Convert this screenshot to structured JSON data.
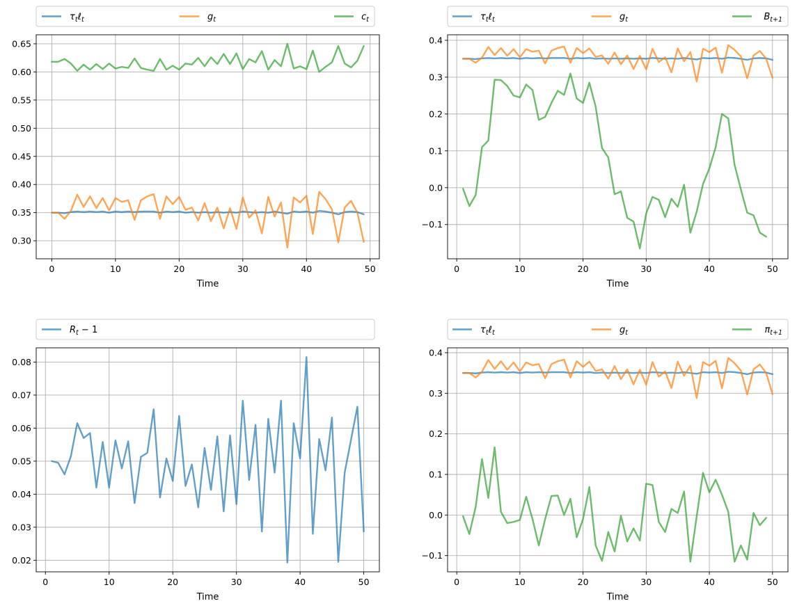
{
  "colors": {
    "blue": "#1f77b4",
    "orange": "#ff7f0e",
    "green": "#2ca02c"
  },
  "chart_data": [
    {
      "type": "line",
      "xlabel": "Time",
      "xlim": [
        -2.45,
        51.45
      ],
      "ylim": [
        0.268,
        0.666
      ],
      "xticks": [
        0,
        10,
        20,
        30,
        40,
        50
      ],
      "yticks": [
        0.3,
        0.35,
        0.4,
        0.45,
        0.5,
        0.55,
        0.6,
        0.65
      ],
      "ytick_labels": [
        "0.30",
        "0.35",
        "0.40",
        "0.45",
        "0.50",
        "0.55",
        "0.60",
        "0.65"
      ],
      "legend": "top",
      "series": [
        {
          "name": "τtℓt",
          "color": "blue",
          "x_start": 0,
          "values": [
            0.35,
            0.35,
            0.349,
            0.351,
            0.352,
            0.351,
            0.352,
            0.351,
            0.352,
            0.35,
            0.352,
            0.351,
            0.352,
            0.351,
            0.352,
            0.352,
            0.352,
            0.35,
            0.352,
            0.351,
            0.352,
            0.35,
            0.351,
            0.35,
            0.351,
            0.35,
            0.351,
            0.35,
            0.351,
            0.35,
            0.352,
            0.351,
            0.35,
            0.351,
            0.35,
            0.352,
            0.35,
            0.348,
            0.352,
            0.351,
            0.352,
            0.35,
            0.353,
            0.352,
            0.35,
            0.347,
            0.351,
            0.352,
            0.351,
            0.347
          ]
        },
        {
          "name": "gt",
          "color": "orange",
          "x_start": 0,
          "values": [
            0.35,
            0.35,
            0.339,
            0.353,
            0.382,
            0.36,
            0.379,
            0.358,
            0.376,
            0.354,
            0.376,
            0.369,
            0.372,
            0.337,
            0.372,
            0.379,
            0.383,
            0.339,
            0.379,
            0.365,
            0.378,
            0.355,
            0.359,
            0.336,
            0.367,
            0.335,
            0.359,
            0.322,
            0.358,
            0.321,
            0.377,
            0.341,
            0.354,
            0.313,
            0.378,
            0.343,
            0.368,
            0.288,
            0.377,
            0.368,
            0.38,
            0.312,
            0.387,
            0.374,
            0.356,
            0.297,
            0.359,
            0.371,
            0.35,
            0.298
          ]
        },
        {
          "name": "ct",
          "color": "green",
          "x_start": 0,
          "values": [
            0.618,
            0.618,
            0.623,
            0.615,
            0.602,
            0.613,
            0.604,
            0.614,
            0.605,
            0.615,
            0.606,
            0.609,
            0.607,
            0.624,
            0.607,
            0.604,
            0.602,
            0.623,
            0.604,
            0.611,
            0.604,
            0.615,
            0.613,
            0.625,
            0.61,
            0.626,
            0.614,
            0.632,
            0.614,
            0.633,
            0.605,
            0.623,
            0.617,
            0.637,
            0.604,
            0.621,
            0.61,
            0.65,
            0.606,
            0.61,
            0.605,
            0.638,
            0.6,
            0.609,
            0.617,
            0.646,
            0.615,
            0.608,
            0.62,
            0.646
          ]
        }
      ]
    },
    {
      "type": "line",
      "xlabel": "Time",
      "xlim": [
        -1.45,
        52.45
      ],
      "ylim": [
        -0.193,
        0.415
      ],
      "xticks": [
        0,
        10,
        20,
        30,
        40,
        50
      ],
      "yticks": [
        -0.1,
        0.0,
        0.1,
        0.2,
        0.3,
        0.4
      ],
      "ytick_labels": [
        "−0.1",
        "0.0",
        "0.1",
        "0.2",
        "0.3",
        "0.4"
      ],
      "legend": "top",
      "series": [
        {
          "name": "τtℓt",
          "color": "blue",
          "x_start": 1,
          "values": [
            0.35,
            0.35,
            0.349,
            0.351,
            0.352,
            0.351,
            0.352,
            0.351,
            0.352,
            0.35,
            0.352,
            0.351,
            0.352,
            0.351,
            0.352,
            0.352,
            0.352,
            0.35,
            0.352,
            0.351,
            0.352,
            0.35,
            0.351,
            0.35,
            0.351,
            0.35,
            0.351,
            0.35,
            0.351,
            0.35,
            0.352,
            0.351,
            0.35,
            0.351,
            0.35,
            0.352,
            0.35,
            0.348,
            0.352,
            0.351,
            0.352,
            0.35,
            0.353,
            0.352,
            0.35,
            0.347,
            0.351,
            0.352,
            0.351,
            0.347
          ]
        },
        {
          "name": "gt",
          "color": "orange",
          "x_start": 1,
          "values": [
            0.35,
            0.35,
            0.339,
            0.353,
            0.382,
            0.36,
            0.379,
            0.358,
            0.376,
            0.354,
            0.376,
            0.369,
            0.372,
            0.337,
            0.372,
            0.379,
            0.383,
            0.339,
            0.379,
            0.365,
            0.378,
            0.355,
            0.359,
            0.336,
            0.367,
            0.335,
            0.359,
            0.322,
            0.358,
            0.321,
            0.377,
            0.341,
            0.354,
            0.313,
            0.378,
            0.343,
            0.368,
            0.288,
            0.377,
            0.368,
            0.38,
            0.312,
            0.387,
            0.374,
            0.356,
            0.297,
            0.359,
            0.371,
            0.35,
            0.298
          ]
        },
        {
          "name": "Bt+1",
          "color": "green",
          "x_start": 1,
          "values": [
            -0.003,
            -0.05,
            -0.02,
            0.11,
            0.128,
            0.293,
            0.292,
            0.276,
            0.25,
            0.245,
            0.28,
            0.265,
            0.184,
            0.192,
            0.23,
            0.263,
            0.252,
            0.31,
            0.242,
            0.23,
            0.285,
            0.22,
            0.108,
            0.082,
            -0.018,
            -0.01,
            -0.082,
            -0.092,
            -0.165,
            -0.07,
            -0.025,
            -0.033,
            -0.08,
            -0.03,
            -0.052,
            0.008,
            -0.122,
            -0.065,
            0.01,
            0.052,
            0.11,
            0.2,
            0.188,
            0.062,
            -0.005,
            -0.068,
            -0.075,
            -0.122,
            -0.133
          ]
        }
      ]
    },
    {
      "type": "line",
      "xlabel": "Time",
      "xlim": [
        -1.45,
        52.45
      ],
      "ylim": [
        0.0165,
        0.0843
      ],
      "xticks": [
        0,
        10,
        20,
        30,
        40,
        50
      ],
      "yticks": [
        0.02,
        0.03,
        0.04,
        0.05,
        0.06,
        0.07,
        0.08
      ],
      "ytick_labels": [
        "0.02",
        "0.03",
        "0.04",
        "0.05",
        "0.06",
        "0.07",
        "0.08"
      ],
      "legend": "top",
      "series": [
        {
          "name": "Rt − 1",
          "color": "blue",
          "x_start": 1,
          "values": [
            0.05,
            0.0495,
            0.046,
            0.0515,
            0.0615,
            0.057,
            0.0585,
            0.042,
            0.0558,
            0.042,
            0.0563,
            0.0478,
            0.056,
            0.0373,
            0.0513,
            0.0525,
            0.0657,
            0.039,
            0.0508,
            0.044,
            0.0637,
            0.0425,
            0.049,
            0.036,
            0.054,
            0.0413,
            0.0575,
            0.0348,
            0.0578,
            0.037,
            0.0683,
            0.0443,
            0.061,
            0.0287,
            0.0628,
            0.0465,
            0.0683,
            0.0193,
            0.0615,
            0.0508,
            0.0815,
            0.028,
            0.0567,
            0.0472,
            0.0632,
            0.0195,
            0.0465,
            0.0565,
            0.0665,
            0.0287
          ]
        }
      ]
    },
    {
      "type": "line",
      "xlabel": "Time",
      "xlim": [
        -1.45,
        52.45
      ],
      "ylim": [
        -0.14,
        0.412
      ],
      "xticks": [
        0,
        10,
        20,
        30,
        40,
        50
      ],
      "yticks": [
        -0.1,
        0.0,
        0.1,
        0.2,
        0.3,
        0.4
      ],
      "ytick_labels": [
        "−0.1",
        "0.0",
        "0.1",
        "0.2",
        "0.3",
        "0.4"
      ],
      "legend": "top",
      "series": [
        {
          "name": "τtℓt",
          "color": "blue",
          "x_start": 1,
          "values": [
            0.35,
            0.35,
            0.349,
            0.351,
            0.352,
            0.351,
            0.352,
            0.351,
            0.352,
            0.35,
            0.352,
            0.351,
            0.352,
            0.351,
            0.352,
            0.352,
            0.352,
            0.35,
            0.352,
            0.351,
            0.352,
            0.35,
            0.351,
            0.35,
            0.351,
            0.35,
            0.351,
            0.35,
            0.351,
            0.35,
            0.352,
            0.351,
            0.35,
            0.351,
            0.35,
            0.352,
            0.35,
            0.348,
            0.352,
            0.351,
            0.352,
            0.35,
            0.353,
            0.352,
            0.35,
            0.347,
            0.351,
            0.352,
            0.351,
            0.347
          ]
        },
        {
          "name": "gt",
          "color": "orange",
          "x_start": 1,
          "values": [
            0.35,
            0.35,
            0.339,
            0.353,
            0.382,
            0.36,
            0.379,
            0.358,
            0.376,
            0.354,
            0.376,
            0.369,
            0.372,
            0.337,
            0.372,
            0.379,
            0.383,
            0.339,
            0.379,
            0.365,
            0.378,
            0.355,
            0.359,
            0.336,
            0.367,
            0.335,
            0.359,
            0.322,
            0.358,
            0.321,
            0.377,
            0.341,
            0.354,
            0.313,
            0.378,
            0.343,
            0.368,
            0.288,
            0.377,
            0.368,
            0.38,
            0.312,
            0.387,
            0.374,
            0.356,
            0.297,
            0.359,
            0.371,
            0.35,
            0.298
          ]
        },
        {
          "name": "πt+1",
          "color": "green",
          "x_start": 1,
          "values": [
            -0.003,
            -0.047,
            0.02,
            0.138,
            0.042,
            0.167,
            0.008,
            -0.02,
            -0.017,
            -0.012,
            0.045,
            -0.01,
            -0.075,
            -0.01,
            0.047,
            0.048,
            0.0,
            0.04,
            -0.055,
            -0.01,
            0.069,
            -0.075,
            -0.113,
            -0.042,
            -0.09,
            -0.002,
            -0.065,
            -0.033,
            -0.063,
            0.077,
            0.074,
            -0.017,
            -0.042,
            0.015,
            0.005,
            0.058,
            -0.115,
            -0.003,
            0.104,
            0.056,
            0.087,
            0.05,
            0.008,
            -0.115,
            -0.075,
            -0.11,
            0.005,
            -0.025,
            -0.007
          ]
        }
      ]
    }
  ]
}
